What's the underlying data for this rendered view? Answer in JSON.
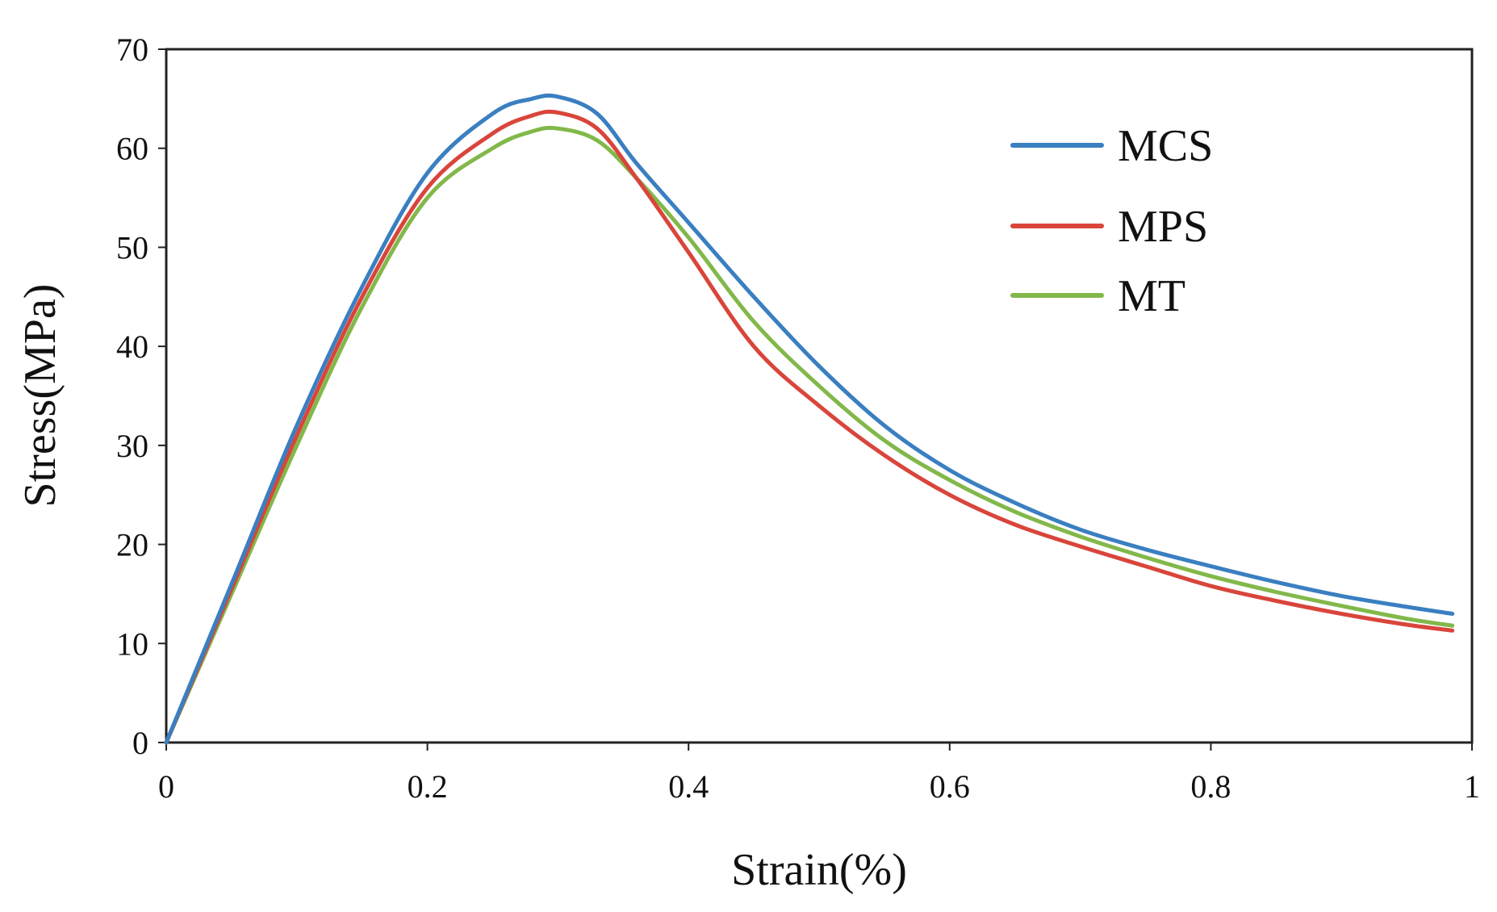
{
  "chart_data": {
    "type": "line",
    "title": "",
    "xlabel": "Strain(%)",
    "ylabel": "Stress(MPa)",
    "xlim": [
      0,
      1
    ],
    "ylim": [
      0,
      70
    ],
    "xticks": [
      0,
      0.2,
      0.4,
      0.6,
      0.8,
      1
    ],
    "xtick_labels": [
      "0",
      "0.2",
      "0.4",
      "0.6",
      "0.8",
      "1"
    ],
    "yticks": [
      0,
      10,
      20,
      30,
      40,
      50,
      60,
      70
    ],
    "ytick_labels": [
      "0",
      "10",
      "20",
      "30",
      "40",
      "50",
      "60",
      "70"
    ],
    "grid": false,
    "legend_position": "top-right",
    "series": [
      {
        "name": "MCS",
        "color": "#3a7fc1",
        "x": [
          0,
          0.05,
          0.1,
          0.15,
          0.2,
          0.25,
          0.28,
          0.3,
          0.33,
          0.36,
          0.4,
          0.45,
          0.5,
          0.55,
          0.6,
          0.65,
          0.7,
          0.75,
          0.8,
          0.85,
          0.9,
          0.95,
          0.985
        ],
        "y": [
          0,
          16,
          32,
          46,
          57.5,
          63.5,
          65,
          65.2,
          63.5,
          58.5,
          52.5,
          45,
          38,
          32,
          27.5,
          24.2,
          21.5,
          19.5,
          17.8,
          16.2,
          14.8,
          13.7,
          13
        ]
      },
      {
        "name": "MPS",
        "color": "#d9453b",
        "x": [
          0,
          0.05,
          0.1,
          0.15,
          0.2,
          0.25,
          0.28,
          0.3,
          0.33,
          0.36,
          0.4,
          0.45,
          0.5,
          0.55,
          0.6,
          0.65,
          0.7,
          0.75,
          0.8,
          0.85,
          0.9,
          0.95,
          0.985
        ],
        "y": [
          0,
          15.5,
          31,
          45,
          56,
          61.5,
          63.3,
          63.6,
          62,
          57,
          49.5,
          40,
          34,
          29,
          25,
          22,
          19.8,
          17.8,
          15.8,
          14.3,
          13,
          11.9,
          11.3
        ]
      },
      {
        "name": "MT",
        "color": "#82b84a",
        "x": [
          0,
          0.05,
          0.1,
          0.15,
          0.2,
          0.25,
          0.28,
          0.3,
          0.33,
          0.36,
          0.4,
          0.45,
          0.5,
          0.55,
          0.6,
          0.65,
          0.7,
          0.75,
          0.8,
          0.85,
          0.9,
          0.95,
          0.985
        ],
        "y": [
          0,
          15,
          30,
          44,
          55,
          60,
          61.7,
          62,
          60.8,
          57,
          51,
          42.5,
          36,
          30.5,
          26.5,
          23.3,
          20.8,
          18.7,
          16.8,
          15.2,
          13.8,
          12.5,
          11.8
        ]
      }
    ]
  }
}
